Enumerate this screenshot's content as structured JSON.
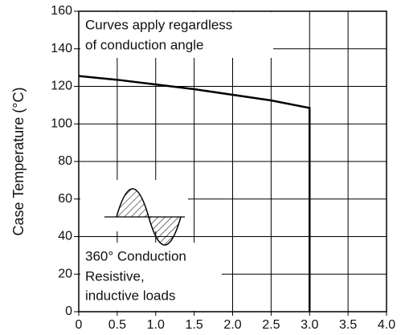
{
  "chart_data": {
    "type": "line",
    "y_label": "Case Temperature  (°C)",
    "annotations": [
      "Curves apply regardless",
      "of conduction angle",
      "360° Conduction",
      "Resistive,",
      "inductive loads"
    ],
    "x": [
      0,
      0.5,
      1.0,
      1.5,
      2.0,
      2.5,
      3.0,
      3.0
    ],
    "series": [
      {
        "color": "#000000",
        "values": [
          125.5,
          123.5,
          121,
          118.5,
          115.5,
          112.5,
          108.5,
          0
        ]
      }
    ],
    "xlim": [
      0,
      4.0
    ],
    "xticks": [
      0,
      0.5,
      {
        "value": 1.0,
        "label": "1.0"
      },
      1.5,
      {
        "value": 2.0,
        "label": "2.0"
      },
      2.5,
      {
        "value": 3.0,
        "label": "3.0"
      },
      3.5,
      {
        "value": 4.0,
        "label": "4.0"
      }
    ],
    "ylim": [
      0,
      160
    ],
    "yticks": [
      0,
      20,
      40,
      60,
      80,
      100,
      120,
      140,
      160
    ],
    "grid": true
  }
}
